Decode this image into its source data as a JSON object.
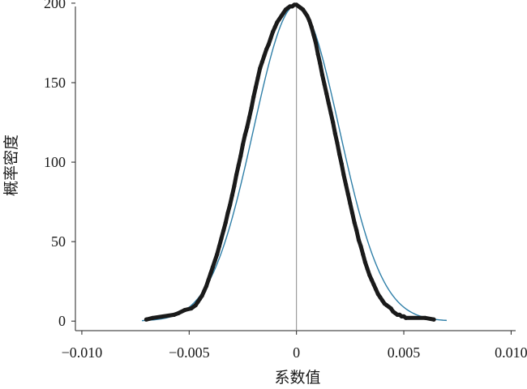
{
  "chart_data": {
    "type": "scatter",
    "title": "",
    "xlabel": "系数值",
    "ylabel": "概率密度",
    "xlim": [
      -0.0103,
      0.0104
    ],
    "ylim": [
      -6,
      202
    ],
    "x_ticks": [
      {
        "value": -0.01,
        "label": "−0.010"
      },
      {
        "value": -0.005,
        "label": "−0.005"
      },
      {
        "value": 0,
        "label": "0"
      },
      {
        "value": 0.005,
        "label": "0.005"
      },
      {
        "value": 0.01,
        "label": "0.010"
      }
    ],
    "y_ticks": [
      {
        "value": 0,
        "label": "0"
      },
      {
        "value": 50,
        "label": "50"
      },
      {
        "value": 100,
        "label": "100"
      },
      {
        "value": 150,
        "label": "150"
      },
      {
        "value": 200,
        "label": "200"
      }
    ],
    "reference_line_x": 0,
    "grid": false,
    "legend": "none",
    "series": [
      {
        "kind": "points",
        "color": "#1a1a1a",
        "x": [
          -0.007,
          -0.0067,
          -0.0057,
          -0.0055,
          -0.0052,
          -0.0049,
          -0.0047,
          -0.0046,
          -0.0045,
          -0.0044,
          -0.0043,
          -0.0042,
          -0.0041,
          -0.004,
          -0.0039,
          -0.0038,
          -0.0037,
          -0.0036,
          -0.0035,
          -0.0034,
          -0.0033,
          -0.0032,
          -0.0031,
          -0.003,
          -0.0029,
          -0.0028,
          -0.0027,
          -0.0026,
          -0.0025,
          -0.0024,
          -0.0023,
          -0.0022,
          -0.0021,
          -0.002,
          -0.0019,
          -0.0018,
          -0.0017,
          -0.0016,
          -0.0015,
          -0.0014,
          -0.0013,
          -0.0012,
          -0.0011,
          -0.001,
          -0.0009,
          -0.0008,
          -0.0007,
          -0.0006,
          -0.0005,
          -0.0004,
          -0.0003,
          -0.0002,
          -0.0001,
          0,
          0.0001,
          0.0002,
          0.0003,
          0.0004,
          0.0005,
          0.0006,
          0.0007,
          0.0008,
          0.0009,
          0.001,
          0.0011,
          0.0012,
          0.0013,
          0.0014,
          0.0015,
          0.0016,
          0.0017,
          0.0018,
          0.0019,
          0.002,
          0.0021,
          0.0022,
          0.0023,
          0.0024,
          0.0025,
          0.0026,
          0.0027,
          0.0028,
          0.0029,
          0.003,
          0.0031,
          0.0032,
          0.0033,
          0.0034,
          0.0035,
          0.0036,
          0.0037,
          0.0038,
          0.0039,
          0.004,
          0.0041,
          0.0042,
          0.0043,
          0.0044,
          0.0045,
          0.0046,
          0.0047,
          0.0048,
          0.0049,
          0.005,
          0.0051,
          0.006,
          0.0064
        ],
        "y": [
          1,
          2,
          4,
          5,
          7,
          8,
          10,
          12,
          14,
          16,
          19,
          22,
          26,
          30,
          34,
          38,
          42,
          47,
          52,
          57,
          62,
          68,
          73,
          79,
          85,
          92,
          98,
          104,
          111,
          117,
          122,
          128,
          134,
          141,
          147,
          153,
          159,
          163,
          167,
          171,
          174,
          178,
          182,
          185,
          188,
          190,
          192,
          194,
          196,
          197,
          198,
          198,
          199,
          199,
          198,
          197,
          196,
          194,
          192,
          189,
          185,
          180,
          175,
          168,
          162,
          155,
          149,
          143,
          137,
          131,
          125,
          118,
          112,
          105,
          99,
          92,
          86,
          80,
          74,
          68,
          62,
          57,
          51,
          47,
          42,
          37,
          33,
          29,
          26,
          23,
          20,
          17,
          15,
          13,
          11,
          10,
          9,
          8,
          6,
          5,
          4,
          4,
          3,
          3,
          2,
          2,
          1
        ]
      },
      {
        "kind": "normal_curve",
        "color": "#2f7fa8",
        "mean": 0,
        "sd": 0.002,
        "peak": 199
      }
    ]
  }
}
